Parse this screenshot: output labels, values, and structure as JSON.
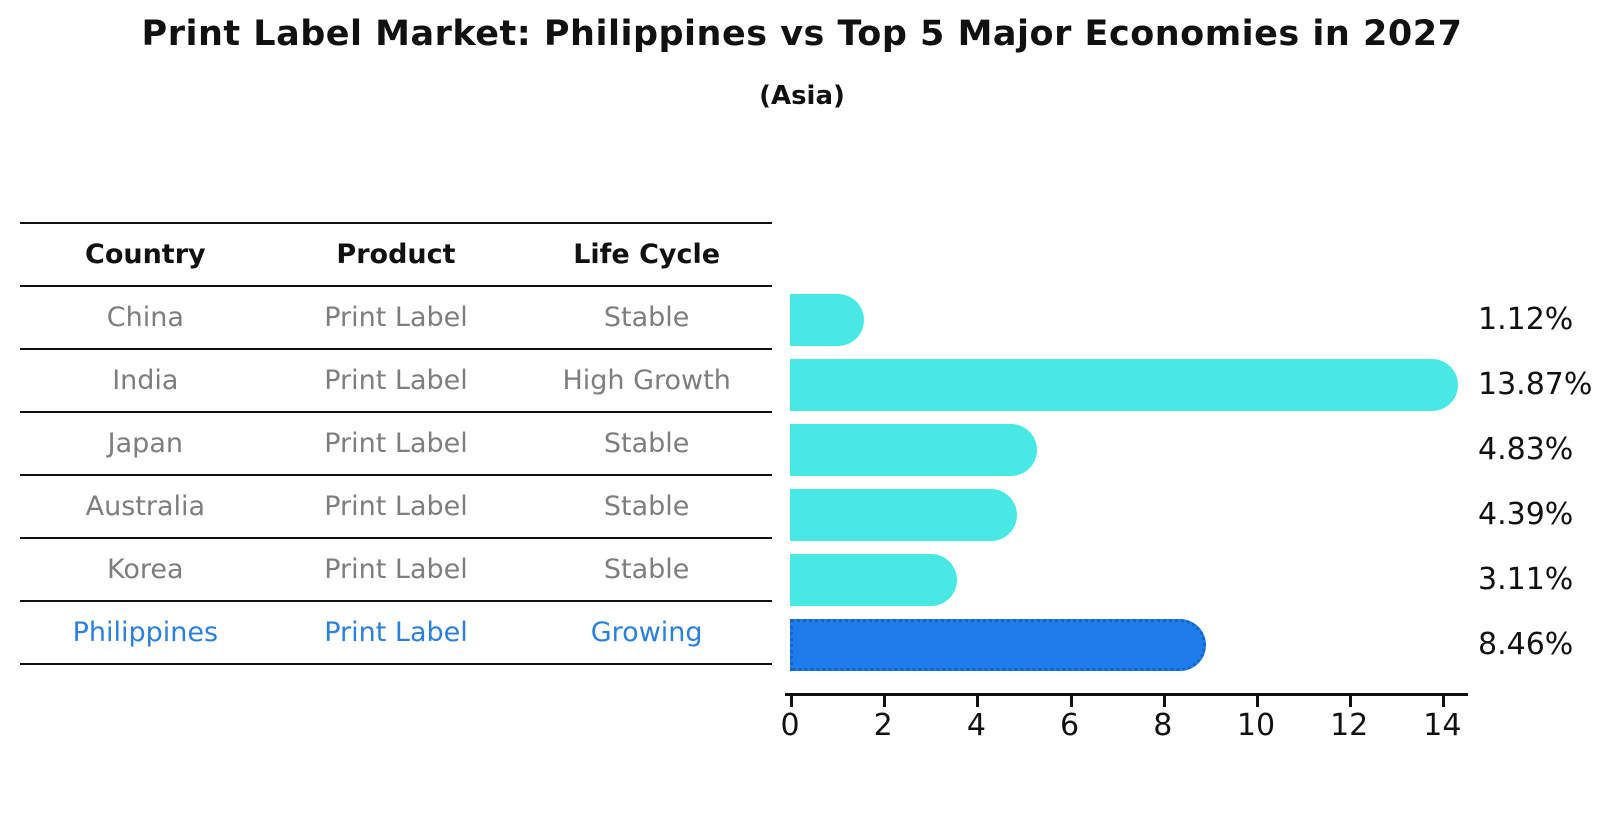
{
  "title": "Print Label Market: Philippines vs Top 5 Major Economies in 2027",
  "subtitle": "(Asia)",
  "table": {
    "headers": [
      "Country",
      "Product",
      "Life Cycle"
    ],
    "rows": [
      {
        "country": "China",
        "product": "Print Label",
        "life_cycle": "Stable",
        "highlight": false
      },
      {
        "country": "India",
        "product": "Print Label",
        "life_cycle": "High Growth",
        "highlight": false
      },
      {
        "country": "Japan",
        "product": "Print Label",
        "life_cycle": "Stable",
        "highlight": false
      },
      {
        "country": "Australia",
        "product": "Print Label",
        "life_cycle": "Stable",
        "highlight": false
      },
      {
        "country": "Korea",
        "product": "Print Label",
        "life_cycle": "Stable",
        "highlight": false
      },
      {
        "country": "Philippines",
        "product": "Print Label",
        "life_cycle": "Growing",
        "highlight": true
      }
    ]
  },
  "chart_data": {
    "type": "bar",
    "orientation": "horizontal",
    "title": "Print Label Market: Philippines vs Top 5 Major Economies in 2027",
    "subtitle": "(Asia)",
    "categories": [
      "China",
      "India",
      "Japan",
      "Australia",
      "Korea",
      "Philippines"
    ],
    "values": [
      1.12,
      13.87,
      4.83,
      4.39,
      3.11,
      8.46
    ],
    "value_labels": [
      "1.12%",
      "13.87%",
      "4.83%",
      "4.39%",
      "3.11%",
      "8.46%"
    ],
    "x_ticks": [
      0,
      2,
      4,
      6,
      8,
      10,
      12,
      14
    ],
    "xlim": [
      0,
      14.5
    ],
    "grid": false,
    "legend": "none",
    "highlight_index": 5,
    "colors": {
      "bar": "#48E9E5",
      "highlight_bar": "#1E7DEB",
      "highlight_edge": "#1565C8",
      "highlight_text": "#2B80DD",
      "row_text": "#7E7E7E",
      "header_text": "#111111",
      "axis": "#111111"
    }
  }
}
